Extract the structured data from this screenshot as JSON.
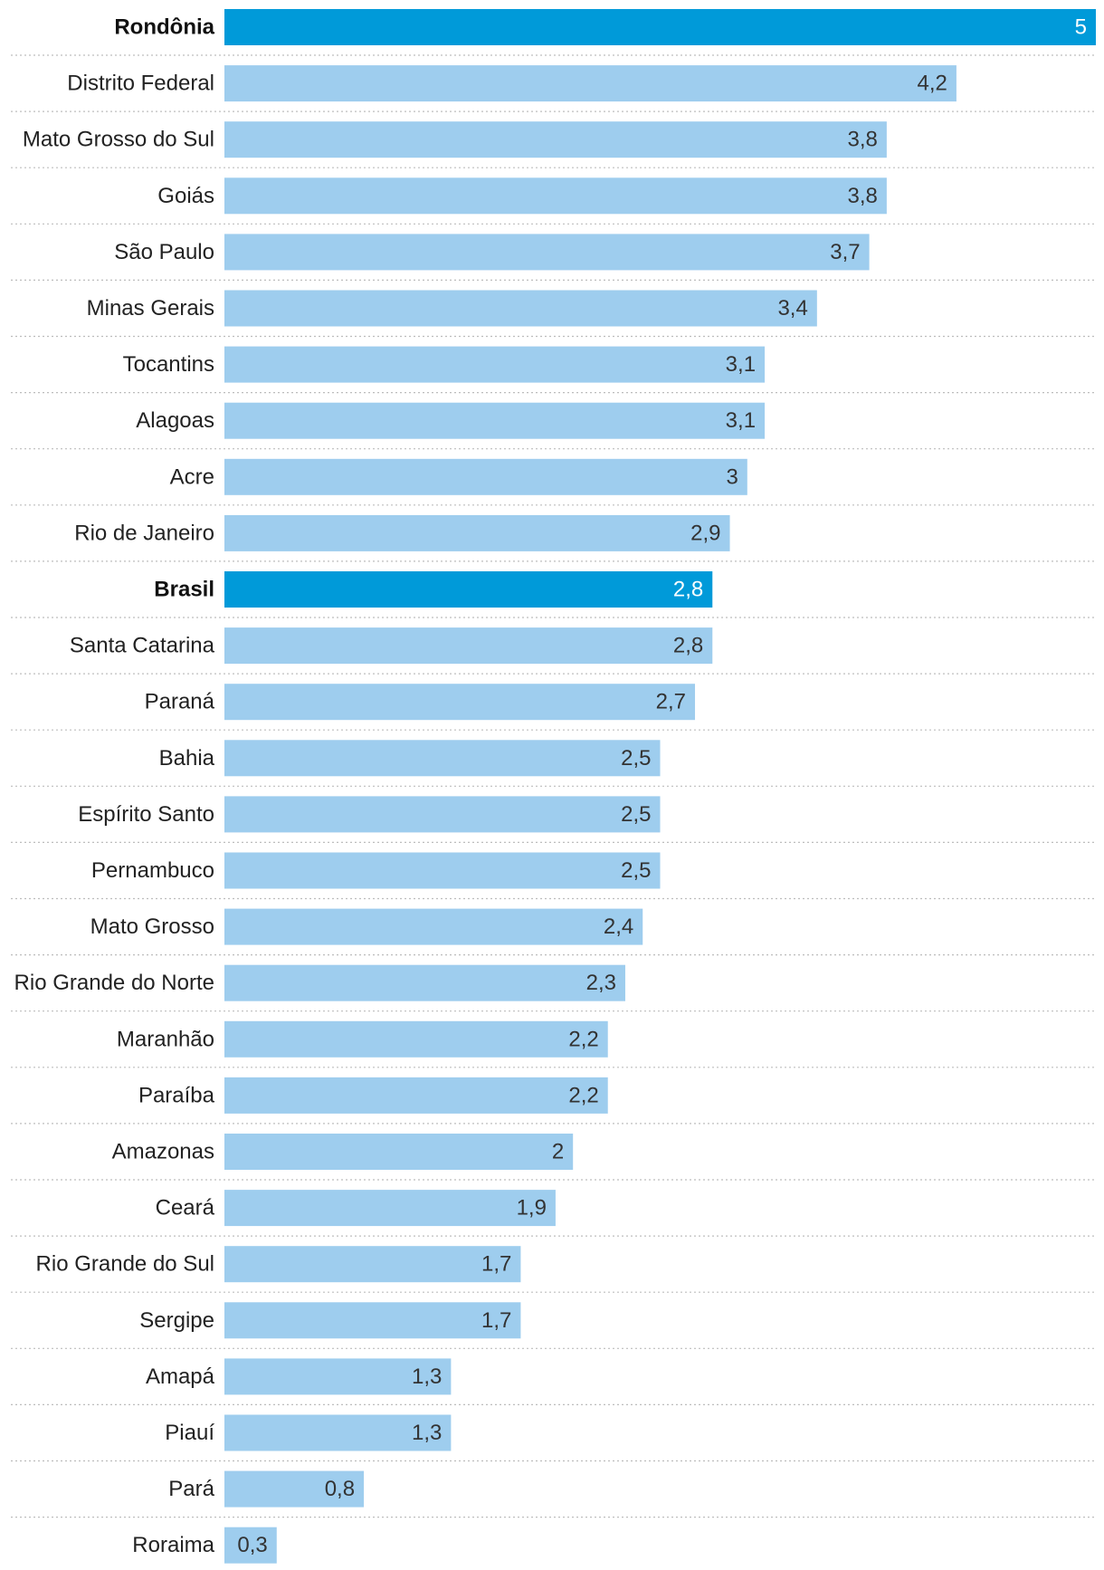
{
  "chart_data": {
    "type": "bar",
    "orientation": "horizontal",
    "categories": [
      "Rondônia",
      "Distrito Federal",
      "Mato Grosso do Sul",
      "Goiás",
      "São Paulo",
      "Minas Gerais",
      "Tocantins",
      "Alagoas",
      "Acre",
      "Rio de Janeiro",
      "Brasil",
      "Santa Catarina",
      "Paraná",
      "Bahia",
      "Espírito Santo",
      "Pernambuco",
      "Mato Grosso",
      "Rio Grande do Norte",
      "Maranhão",
      "Paraíba",
      "Amazonas",
      "Ceará",
      "Rio Grande do Sul",
      "Sergipe",
      "Amapá",
      "Piauí",
      "Pará",
      "Roraima"
    ],
    "values": [
      5,
      4.2,
      3.8,
      3.8,
      3.7,
      3.4,
      3.1,
      3.1,
      3,
      2.9,
      2.8,
      2.8,
      2.7,
      2.5,
      2.5,
      2.5,
      2.4,
      2.3,
      2.2,
      2.2,
      2,
      1.9,
      1.7,
      1.7,
      1.3,
      1.3,
      0.8,
      0.3
    ],
    "value_labels": [
      "5",
      "4,2",
      "3,8",
      "3,8",
      "3,7",
      "3,4",
      "3,1",
      "3,1",
      "3",
      "2,9",
      "2,8",
      "2,8",
      "2,7",
      "2,5",
      "2,5",
      "2,5",
      "2,4",
      "2,3",
      "2,2",
      "2,2",
      "2",
      "1,9",
      "1,7",
      "1,7",
      "1,3",
      "1,3",
      "0,8",
      "0,3"
    ],
    "highlighted": [
      "Rondônia",
      "Brasil"
    ],
    "xlim": [
      0,
      5
    ],
    "title": "",
    "xlabel": "",
    "ylabel": "",
    "grid": false,
    "legend": "none"
  },
  "colors": {
    "bar": "#9ecdee",
    "bar_highlight": "#009ad9",
    "separator": "#bdbdbd"
  }
}
